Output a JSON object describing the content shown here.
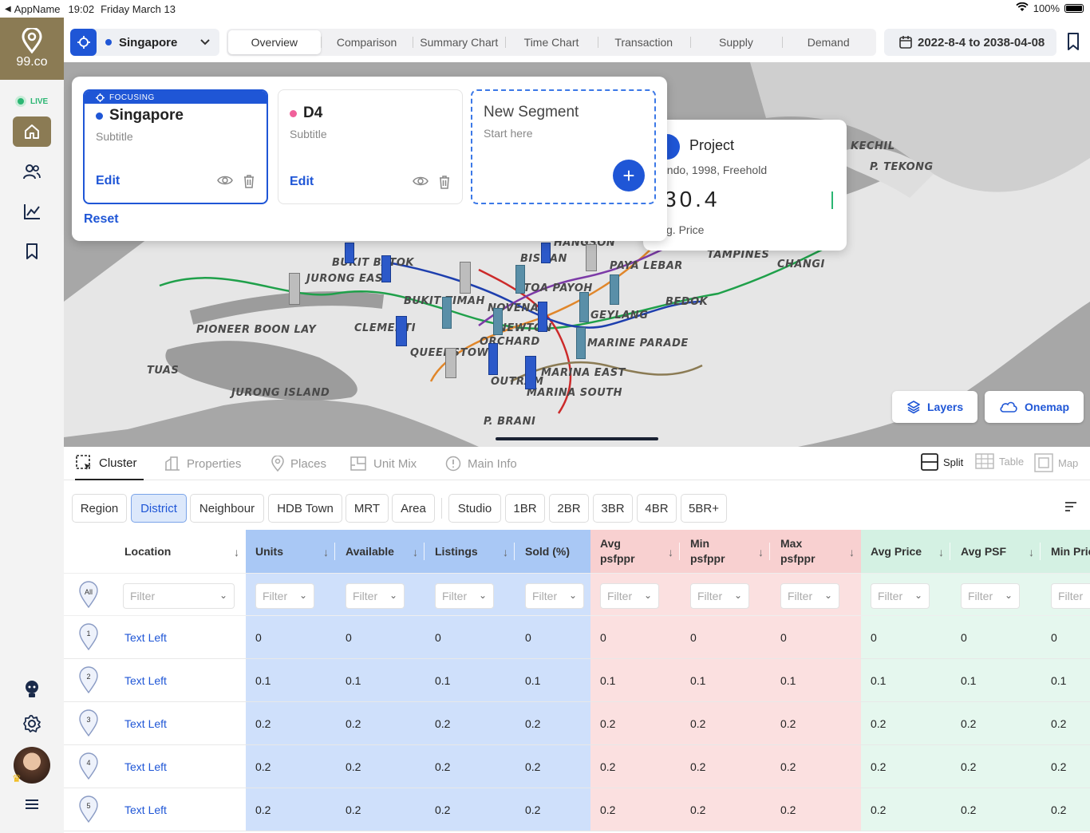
{
  "status": {
    "back_app": "AppName",
    "time": "19:02",
    "date": "Friday March 13",
    "battery": "100%"
  },
  "sidebar": {
    "logo_text": "99.co",
    "live_label": "LIVE"
  },
  "topbar": {
    "location": "Singapore",
    "tabs": [
      "Overview",
      "Comparison",
      "Summary Chart",
      "Time Chart",
      "Transaction",
      "Supply",
      "Demand"
    ],
    "date_range": "2022-8-4 to 2038-04-08"
  },
  "segments": {
    "focus_tag": "FOCUSING",
    "items": [
      {
        "name": "Singapore",
        "subtitle": "Subtitle",
        "edit": "Edit",
        "dot_color": "#1f56d6"
      },
      {
        "name": "D4",
        "subtitle": "Subtitle",
        "edit": "Edit",
        "dot_color": "#f0609a"
      }
    ],
    "new_title": "New Segment",
    "new_sub": "Start here",
    "reset": "Reset"
  },
  "project_card": {
    "title": "Project",
    "desc": "ondo, 1998, Freehold",
    "value": "30.4",
    "label": "vg. Price"
  },
  "map": {
    "labels": [
      "KECHIL",
      "P. TEKONG",
      "PAYA LEBAR",
      "TAMPINES",
      "CHANGI",
      "BUKIT BATOK",
      "JURONG EAST",
      "BISHAN",
      "TOA PAYOH",
      "BUKIT TIMAH",
      "NOVENA",
      "NEWTON",
      "ORCHARD",
      "GEYLANG",
      "BEDOK",
      "PIONEER BOON LAY",
      "CLEMENTI",
      "QUEENSTOWN",
      "MARINE PARADE",
      "MARINA EAST",
      "OUTRAM",
      "MARINA SOUTH",
      "TUAS",
      "JURONG ISLAND",
      "P. BRANI",
      "HANGSON"
    ],
    "layers": "Layers",
    "onemap": "Onemap"
  },
  "subtabs": [
    "Cluster",
    "Properties",
    "Places",
    "Unit Mix",
    "Main Info"
  ],
  "view_toggle": [
    "Split",
    "Table",
    "Map"
  ],
  "filters": {
    "groups": [
      "Region",
      "District",
      "Neighbour",
      "HDB Town",
      "MRT",
      "Area"
    ],
    "selected": "District",
    "units": [
      "Studio",
      "1BR",
      "2BR",
      "3BR",
      "4BR",
      "5BR+"
    ]
  },
  "table": {
    "all_label": "All",
    "filter_placeholder": "Filter",
    "location_header": "Location",
    "columns": [
      {
        "h1": "Units",
        "h2": ""
      },
      {
        "h1": "Available",
        "h2": ""
      },
      {
        "h1": "Listings",
        "h2": ""
      },
      {
        "h1": "Sold (%)",
        "h2": ""
      },
      {
        "h1": "Avg",
        "h2": "psfppr"
      },
      {
        "h1": "Min",
        "h2": "psfppr"
      },
      {
        "h1": "Max",
        "h2": "psfppr"
      },
      {
        "h1": "Avg Price",
        "h2": ""
      },
      {
        "h1": "Avg PSF",
        "h2": ""
      },
      {
        "h1": "Min Pric",
        "h2": ""
      }
    ],
    "rows": [
      {
        "n": "1",
        "loc": "Text Left",
        "vals": [
          "0",
          "0",
          "0",
          "0",
          "0",
          "0",
          "0",
          "0",
          "0",
          "0"
        ]
      },
      {
        "n": "2",
        "loc": "Text Left",
        "vals": [
          "0.1",
          "0.1",
          "0.1",
          "0.1",
          "0.1",
          "0.1",
          "0.1",
          "0.1",
          "0.1",
          "0.1"
        ]
      },
      {
        "n": "3",
        "loc": "Text Left",
        "vals": [
          "0.2",
          "0.2",
          "0.2",
          "0.2",
          "0.2",
          "0.2",
          "0.2",
          "0.2",
          "0.2",
          "0.2"
        ]
      },
      {
        "n": "4",
        "loc": "Text Left",
        "vals": [
          "0.2",
          "0.2",
          "0.2",
          "0.2",
          "0.2",
          "0.2",
          "0.2",
          "0.2",
          "0.2",
          "0.2"
        ]
      },
      {
        "n": "5",
        "loc": "Text Left",
        "vals": [
          "0.2",
          "0.2",
          "0.2",
          "0.2",
          "0.2",
          "0.2",
          "0.2",
          "0.2",
          "0.2",
          "0.2"
        ]
      }
    ]
  },
  "colors": {
    "accent": "#1f56d6",
    "brand": "#8b7b54",
    "blue_col": "#a9c8f5",
    "red_col": "#f8d0d0",
    "green_col": "#d4f1e3",
    "live": "#2bb673"
  }
}
